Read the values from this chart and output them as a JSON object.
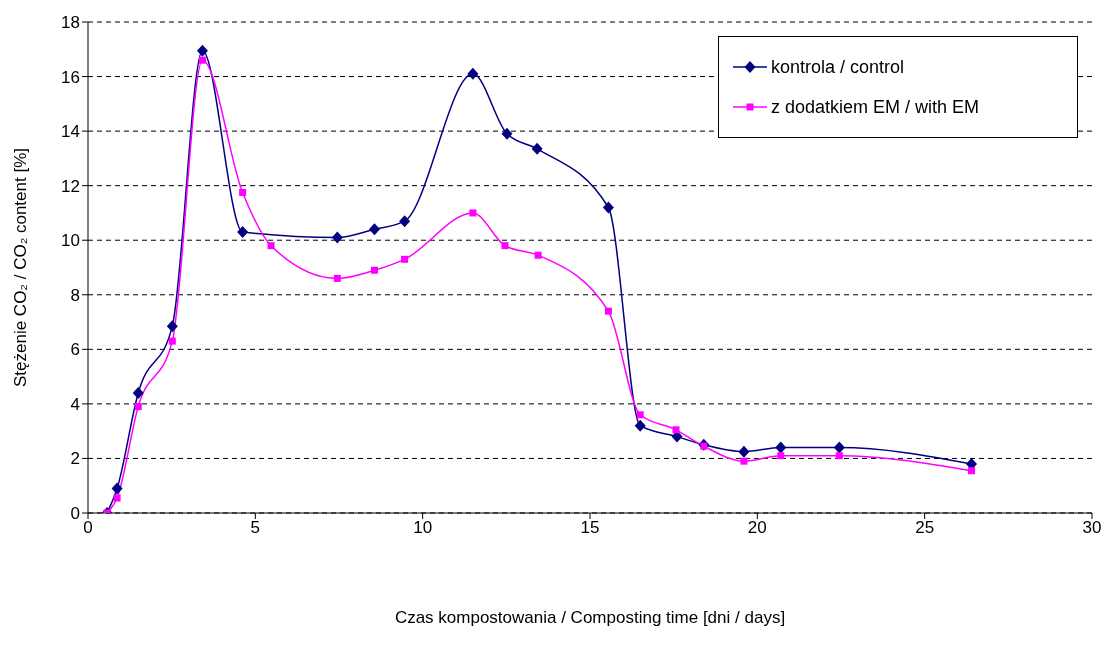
{
  "chart_data": {
    "type": "line",
    "xlabel": "Czas kompostowania / Composting time [dni / days]",
    "ylabel": "Stężenie CO₂ / CO₂ content [%]",
    "xlim": [
      0,
      30
    ],
    "xticks": [
      0,
      5,
      10,
      15,
      20,
      25,
      30
    ],
    "ylim": [
      0,
      18
    ],
    "yticks": [
      0,
      2,
      4,
      6,
      8,
      10,
      12,
      14,
      16,
      18
    ],
    "grid": "y",
    "legend": "top right",
    "line_style": "solid",
    "series": [
      {
        "name": "kontrola / control",
        "color": "#000080",
        "marker": "diamond",
        "x": [
          0.57,
          0.87,
          1.5,
          2.52,
          3.42,
          4.62,
          7.45,
          8.56,
          9.46,
          11.5,
          12.52,
          13.42,
          15.55,
          16.5,
          17.6,
          18.4,
          19.6,
          20.7,
          22.45,
          26.4
        ],
        "values": [
          0,
          0.9,
          4.4,
          6.85,
          16.95,
          10.3,
          10.1,
          10.4,
          10.7,
          16.1,
          13.9,
          13.35,
          11.2,
          3.2,
          2.8,
          2.5,
          2.25,
          2.4,
          2.4,
          1.8
        ]
      },
      {
        "name": "z dodatkiem EM / with EM",
        "color": "#ff00ff",
        "marker": "square",
        "x": [
          0.57,
          0.87,
          1.5,
          2.52,
          3.42,
          4.62,
          5.47,
          7.45,
          8.56,
          9.46,
          11.5,
          12.46,
          13.45,
          15.55,
          16.5,
          17.57,
          18.4,
          19.6,
          20.7,
          22.45,
          26.4
        ],
        "values": [
          0,
          0.55,
          3.9,
          6.3,
          16.6,
          11.75,
          9.8,
          8.6,
          8.9,
          9.3,
          11.0,
          9.8,
          9.45,
          7.4,
          3.6,
          3.05,
          2.45,
          1.9,
          2.1,
          2.1,
          1.55
        ]
      }
    ]
  }
}
